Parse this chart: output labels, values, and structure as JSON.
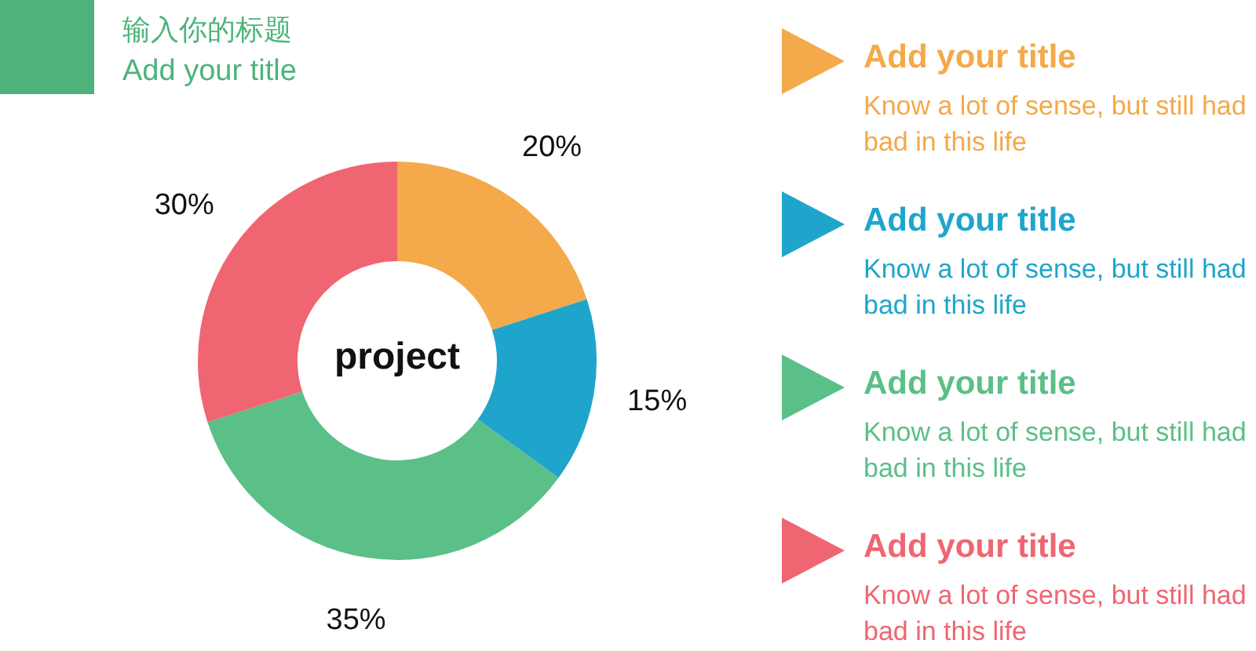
{
  "chart_data": {
    "type": "donut",
    "title": "输入你的标题",
    "subtitle": "Add your title",
    "categories": [
      "Add your title",
      "Add your title",
      "Add your title",
      "Add your title"
    ],
    "values": [
      20,
      15,
      35,
      30
    ],
    "colors": [
      "#f4a94a",
      "#1fa5cc",
      "#5bbf88",
      "#ef6672"
    ],
    "value_labels": [
      "20%",
      "15%",
      "35%",
      "30%"
    ],
    "legend": "right",
    "annotations": [
      "project",
      "Know a lot of sense, but still had bad in this life",
      "Know a lot of sense, but still had bad in this life",
      "Know a lot of sense, but still had bad in this life",
      "Know a lot of sense, but still had bad in this life"
    ]
  }
}
